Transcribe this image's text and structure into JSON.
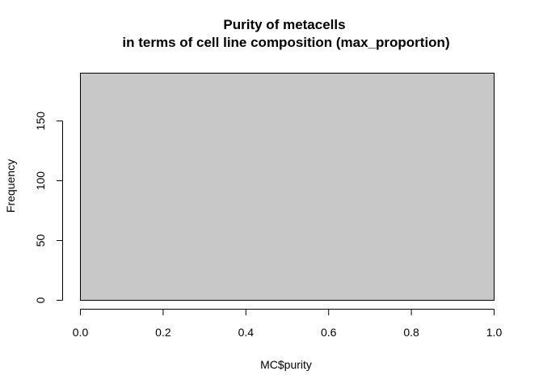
{
  "chart_data": {
    "type": "bar",
    "title_line1": "Purity of metacells",
    "title_line2": "in terms of cell line composition (max_proportion)",
    "xlabel": "MC$purity",
    "ylabel": "Frequency",
    "bins": [
      {
        "from": 0.0,
        "to": 1.0,
        "count": 190
      }
    ],
    "xlim": [
      0.0,
      1.0
    ],
    "ylim": [
      0,
      190
    ],
    "x_ticks": [
      "0.0",
      "0.2",
      "0.4",
      "0.6",
      "0.8",
      "1.0"
    ],
    "y_ticks": [
      "0",
      "50",
      "100",
      "150"
    ],
    "bar_fill": "#c8c8c8",
    "bar_stroke": "#000000",
    "grid": false,
    "legend": "none"
  }
}
